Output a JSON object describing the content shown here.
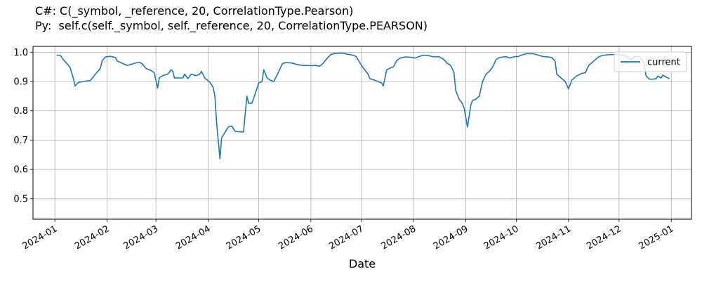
{
  "chart_data": {
    "type": "line",
    "title_lines": [
      "C#: C(_symbol, _reference, 20, CorrelationType.Pearson)",
      "Py:  self.c(self._symbol, self._reference, 20, CorrelationType.PEARSON)"
    ],
    "xlabel": "Date",
    "ylabel": "",
    "xlim": [
      "2023-12-19",
      "2025-01-13"
    ],
    "ylim": [
      0.43,
      1.02
    ],
    "grid": true,
    "legend_position": "top-right",
    "x_ticks": [
      "2024-01",
      "2024-02",
      "2024-03",
      "2024-04",
      "2024-05",
      "2024-06",
      "2024-07",
      "2024-08",
      "2024-09",
      "2024-10",
      "2024-11",
      "2024-12",
      "2025-01"
    ],
    "y_ticks": [
      "0.5",
      "0.6",
      "0.7",
      "0.8",
      "0.9",
      "1.0"
    ],
    "series": [
      {
        "name": "current",
        "color": "#1f77b4",
        "points": [
          [
            "2024-01-02",
            0.99
          ],
          [
            "2024-01-04",
            0.99
          ],
          [
            "2024-01-06",
            0.975
          ],
          [
            "2024-01-08",
            0.962
          ],
          [
            "2024-01-10",
            0.948
          ],
          [
            "2024-01-12",
            0.91
          ],
          [
            "2024-01-13",
            0.885
          ],
          [
            "2024-01-15",
            0.897
          ],
          [
            "2024-01-18",
            0.9
          ],
          [
            "2024-01-20",
            0.902
          ],
          [
            "2024-01-22",
            0.903
          ],
          [
            "2024-01-25",
            0.925
          ],
          [
            "2024-01-28",
            0.945
          ],
          [
            "2024-01-29",
            0.97
          ],
          [
            "2024-01-31",
            0.984
          ],
          [
            "2024-02-03",
            0.986
          ],
          [
            "2024-02-06",
            0.982
          ],
          [
            "2024-02-07",
            0.97
          ],
          [
            "2024-02-09",
            0.965
          ],
          [
            "2024-02-13",
            0.955
          ],
          [
            "2024-02-16",
            0.96
          ],
          [
            "2024-02-20",
            0.966
          ],
          [
            "2024-02-22",
            0.96
          ],
          [
            "2024-02-24",
            0.945
          ],
          [
            "2024-02-27",
            0.938
          ],
          [
            "2024-02-29",
            0.93
          ],
          [
            "2024-03-02",
            0.878
          ],
          [
            "2024-03-03",
            0.912
          ],
          [
            "2024-03-05",
            0.92
          ],
          [
            "2024-03-08",
            0.925
          ],
          [
            "2024-03-10",
            0.94
          ],
          [
            "2024-03-11",
            0.935
          ],
          [
            "2024-03-12",
            0.912
          ],
          [
            "2024-03-15",
            0.912
          ],
          [
            "2024-03-17",
            0.912
          ],
          [
            "2024-03-18",
            0.925
          ],
          [
            "2024-03-20",
            0.91
          ],
          [
            "2024-03-22",
            0.925
          ],
          [
            "2024-03-25",
            0.92
          ],
          [
            "2024-03-27",
            0.925
          ],
          [
            "2024-03-28",
            0.935
          ],
          [
            "2024-03-30",
            0.912
          ],
          [
            "2024-04-02",
            0.898
          ],
          [
            "2024-04-04",
            0.88
          ],
          [
            "2024-04-05",
            0.85
          ],
          [
            "2024-04-06",
            0.76
          ],
          [
            "2024-04-08",
            0.636
          ],
          [
            "2024-04-09",
            0.708
          ],
          [
            "2024-04-11",
            0.726
          ],
          [
            "2024-04-13",
            0.745
          ],
          [
            "2024-04-15",
            0.748
          ],
          [
            "2024-04-17",
            0.73
          ],
          [
            "2024-04-20",
            0.728
          ],
          [
            "2024-04-22",
            0.728
          ],
          [
            "2024-04-23",
            0.79
          ],
          [
            "2024-04-24",
            0.85
          ],
          [
            "2024-04-25",
            0.826
          ],
          [
            "2024-04-27",
            0.826
          ],
          [
            "2024-04-30",
            0.876
          ],
          [
            "2024-05-01",
            0.895
          ],
          [
            "2024-05-03",
            0.9
          ],
          [
            "2024-05-04",
            0.94
          ],
          [
            "2024-05-06",
            0.912
          ],
          [
            "2024-05-08",
            0.904
          ],
          [
            "2024-05-10",
            0.9
          ],
          [
            "2024-05-13",
            0.935
          ],
          [
            "2024-05-15",
            0.96
          ],
          [
            "2024-05-17",
            0.965
          ],
          [
            "2024-05-21",
            0.963
          ],
          [
            "2024-05-24",
            0.958
          ],
          [
            "2024-05-27",
            0.955
          ],
          [
            "2024-06-02",
            0.954
          ],
          [
            "2024-06-04",
            0.955
          ],
          [
            "2024-06-06",
            0.952
          ],
          [
            "2024-06-08",
            0.96
          ],
          [
            "2024-06-10",
            0.975
          ],
          [
            "2024-06-13",
            0.993
          ],
          [
            "2024-06-16",
            0.996
          ],
          [
            "2024-06-20",
            0.997
          ],
          [
            "2024-06-23",
            0.993
          ],
          [
            "2024-06-26",
            0.99
          ],
          [
            "2024-06-28",
            0.985
          ],
          [
            "2024-07-01",
            0.955
          ],
          [
            "2024-07-03",
            0.94
          ],
          [
            "2024-07-05",
            0.925
          ],
          [
            "2024-07-06",
            0.91
          ],
          [
            "2024-07-08",
            0.906
          ],
          [
            "2024-07-10",
            0.902
          ],
          [
            "2024-07-13",
            0.895
          ],
          [
            "2024-07-14",
            0.885
          ],
          [
            "2024-07-16",
            0.94
          ],
          [
            "2024-07-18",
            0.946
          ],
          [
            "2024-07-20",
            0.95
          ],
          [
            "2024-07-22",
            0.972
          ],
          [
            "2024-07-24",
            0.98
          ],
          [
            "2024-07-27",
            0.984
          ],
          [
            "2024-07-30",
            0.983
          ],
          [
            "2024-08-02",
            0.98
          ],
          [
            "2024-08-04",
            0.985
          ],
          [
            "2024-08-07",
            0.99
          ],
          [
            "2024-08-10",
            0.988
          ],
          [
            "2024-08-13",
            0.984
          ],
          [
            "2024-08-16",
            0.985
          ],
          [
            "2024-08-19",
            0.975
          ],
          [
            "2024-08-21",
            0.962
          ],
          [
            "2024-08-23",
            0.955
          ],
          [
            "2024-08-25",
            0.93
          ],
          [
            "2024-08-26",
            0.87
          ],
          [
            "2024-08-28",
            0.84
          ],
          [
            "2024-08-30",
            0.825
          ],
          [
            "2024-08-31",
            0.81
          ],
          [
            "2024-09-02",
            0.745
          ],
          [
            "2024-09-04",
            0.82
          ],
          [
            "2024-09-05",
            0.835
          ],
          [
            "2024-09-07",
            0.84
          ],
          [
            "2024-09-09",
            0.85
          ],
          [
            "2024-09-11",
            0.9
          ],
          [
            "2024-09-13",
            0.925
          ],
          [
            "2024-09-15",
            0.935
          ],
          [
            "2024-09-17",
            0.95
          ],
          [
            "2024-09-19",
            0.975
          ],
          [
            "2024-09-21",
            0.982
          ],
          [
            "2024-09-25",
            0.985
          ],
          [
            "2024-09-27",
            0.98
          ],
          [
            "2024-09-30",
            0.985
          ],
          [
            "2024-10-02",
            0.985
          ],
          [
            "2024-10-04",
            0.99
          ],
          [
            "2024-10-07",
            0.995
          ],
          [
            "2024-10-11",
            0.995
          ],
          [
            "2024-10-14",
            0.99
          ],
          [
            "2024-10-17",
            0.985
          ],
          [
            "2024-10-20",
            0.984
          ],
          [
            "2024-10-22",
            0.982
          ],
          [
            "2024-10-24",
            0.97
          ],
          [
            "2024-10-25",
            0.925
          ],
          [
            "2024-10-28",
            0.91
          ],
          [
            "2024-10-30",
            0.9
          ],
          [
            "2024-11-01",
            0.875
          ],
          [
            "2024-11-03",
            0.905
          ],
          [
            "2024-11-06",
            0.92
          ],
          [
            "2024-11-09",
            0.928
          ],
          [
            "2024-11-11",
            0.93
          ],
          [
            "2024-11-13",
            0.955
          ],
          [
            "2024-11-16",
            0.97
          ],
          [
            "2024-11-19",
            0.985
          ],
          [
            "2024-11-22",
            0.99
          ],
          [
            "2024-11-26",
            0.992
          ],
          [
            "2024-11-30",
            0.992
          ],
          [
            "2024-12-03",
            0.99
          ],
          [
            "2024-12-06",
            0.985
          ],
          [
            "2024-12-08",
            0.975
          ],
          [
            "2024-12-10",
            0.985
          ],
          [
            "2024-12-13",
            0.985
          ],
          [
            "2024-12-14",
            0.98
          ],
          [
            "2024-12-16",
            0.96
          ],
          [
            "2024-12-17",
            0.92
          ],
          [
            "2024-12-19",
            0.908
          ],
          [
            "2024-12-21",
            0.908
          ],
          [
            "2024-12-23",
            0.91
          ],
          [
            "2024-12-24",
            0.918
          ],
          [
            "2024-12-26",
            0.912
          ],
          [
            "2024-12-27",
            0.922
          ],
          [
            "2024-12-29",
            0.915
          ],
          [
            "2024-12-31",
            0.91
          ]
        ]
      }
    ]
  }
}
